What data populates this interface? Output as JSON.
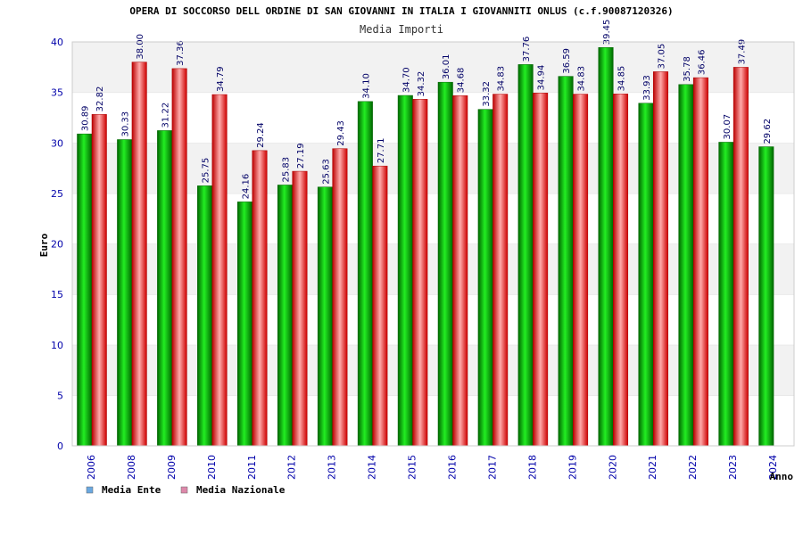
{
  "chart_data": {
    "type": "bar",
    "title": "OPERA DI SOCCORSO DELL ORDINE DI SAN GIOVANNI IN ITALIA I GIOVANNITI ONLUS (c.f.90087120326)",
    "subtitle": "Media Importi",
    "xlabel": "Anno",
    "ylabel": "Euro",
    "ylim": [
      0,
      40
    ],
    "yticks": [
      0,
      5,
      10,
      15,
      20,
      25,
      30,
      35,
      40
    ],
    "grid": "horizontal bands",
    "legend_position": "bottom-left",
    "categories": [
      "2006",
      "2008",
      "2009",
      "2010",
      "2011",
      "2012",
      "2013",
      "2014",
      "2015",
      "2016",
      "2017",
      "2018",
      "2019",
      "2020",
      "2021",
      "2022",
      "2023",
      "2024"
    ],
    "series": [
      {
        "name": "Media Ente",
        "legend_color": "#6aa8e0",
        "bar_color": "#00bb00",
        "values": [
          30.89,
          30.33,
          31.22,
          25.75,
          24.16,
          25.83,
          25.63,
          34.1,
          34.7,
          36.01,
          33.32,
          37.76,
          36.59,
          39.45,
          33.93,
          35.78,
          30.07,
          29.62
        ],
        "labels": [
          "30.89",
          "30.33",
          "31.22",
          "25.75",
          "24.16",
          "25.83",
          "25.63",
          "34.10",
          "34.70",
          "36.01",
          "33.32",
          "37.76",
          "36.59",
          "39.45",
          "33.93",
          "35.78",
          "30.07",
          "29.62"
        ]
      },
      {
        "name": "Media Nazionale",
        "legend_color": "#dd88aa",
        "bar_color": "#ee1111",
        "values": [
          32.82,
          38.0,
          37.36,
          34.79,
          29.24,
          27.19,
          29.43,
          27.71,
          34.32,
          34.68,
          34.83,
          34.94,
          34.83,
          34.85,
          37.05,
          36.46,
          37.49,
          null
        ],
        "labels": [
          "32.82",
          "38.00",
          "37.36",
          "34.79",
          "29.24",
          "27.19",
          "29.43",
          "27.71",
          "34.32",
          "34.68",
          "34.83",
          "34.94",
          "34.83",
          "34.85",
          "37.05",
          "36.46",
          "37.49",
          null
        ]
      }
    ]
  }
}
